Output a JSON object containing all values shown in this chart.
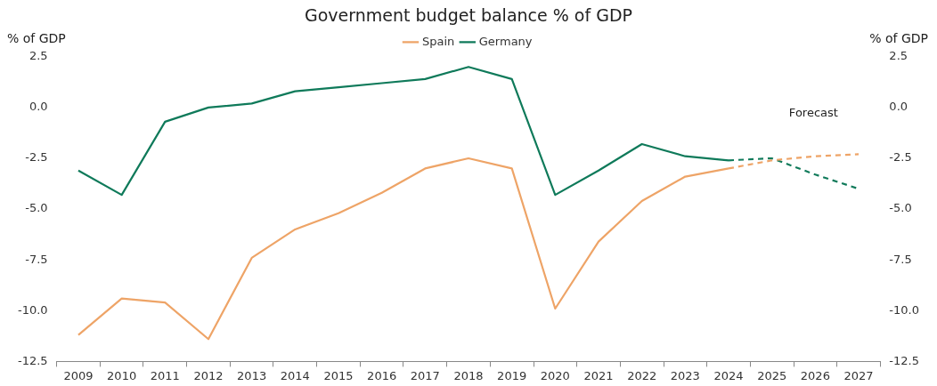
{
  "chart_data": {
    "type": "line",
    "title": "Government budget balance % of GDP",
    "ylabel": "% of GDP",
    "y2label": "% of GDP",
    "categories": [
      "2009",
      "2010",
      "2011",
      "2012",
      "2013",
      "2014",
      "2015",
      "2016",
      "2017",
      "2018",
      "2019",
      "2020",
      "2021",
      "2022",
      "2023",
      "2024",
      "2025",
      "2026",
      "2027"
    ],
    "series": [
      {
        "name": "Spain",
        "color": "#eea467",
        "values": [
          -11.2,
          -9.4,
          -9.6,
          -11.4,
          -7.4,
          -6.0,
          -5.2,
          -4.2,
          -3.0,
          -2.5,
          -3.0,
          -9.9,
          -6.6,
          -4.6,
          -3.4,
          -3.0,
          null,
          null,
          null
        ]
      },
      {
        "name": "Germany",
        "color": "#0f7a5a",
        "values": [
          -3.1,
          -4.3,
          -0.7,
          0.0,
          0.2,
          0.8,
          1.0,
          1.2,
          1.4,
          2.0,
          1.4,
          -4.3,
          -3.1,
          -1.8,
          -2.4,
          -2.6,
          null,
          null,
          null
        ]
      },
      {
        "color": "#eea467",
        "line_style": "dashed",
        "values": [
          null,
          null,
          null,
          null,
          null,
          null,
          null,
          null,
          null,
          null,
          null,
          null,
          null,
          null,
          null,
          -3.0,
          -2.6,
          -2.4,
          -2.3
        ]
      },
      {
        "color": "#0f7a5a",
        "line_style": "dashed",
        "values": [
          null,
          null,
          null,
          null,
          null,
          null,
          null,
          null,
          null,
          null,
          null,
          null,
          null,
          null,
          null,
          -2.6,
          -2.5,
          -3.3,
          -4.0
        ]
      }
    ],
    "ylim": [
      -12.5,
      2.5
    ],
    "yticks": [
      2.5,
      {
        "value": 0,
        "label": "0.0"
      },
      -2.5,
      {
        "value": -5,
        "label": "-5.0"
      },
      -7.5,
      {
        "value": -10,
        "label": "-10.0"
      },
      -12.5
    ],
    "y2lim": [
      -12.5,
      2.5
    ],
    "y2ticks": [
      2.5,
      {
        "value": 0,
        "label": "0.0"
      },
      -2.5,
      {
        "value": -5,
        "label": "-5.0"
      },
      -7.5,
      {
        "value": -10,
        "label": "-10.0"
      },
      -12.5
    ],
    "annotations": [
      "Forecast"
    ],
    "legend": "top",
    "grid": false,
    "marker": "none",
    "line_style": "solid"
  }
}
